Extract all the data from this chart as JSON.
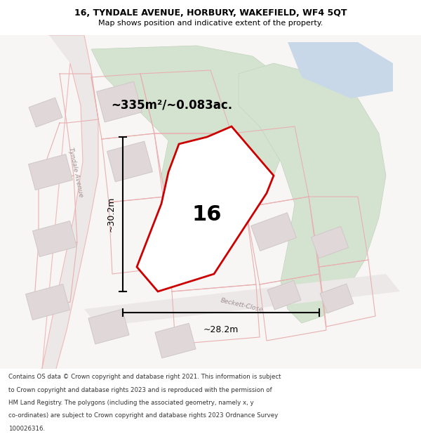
{
  "title_line1": "16, TYNDALE AVENUE, HORBURY, WAKEFIELD, WF4 5QT",
  "title_line2": "Map shows position and indicative extent of the property.",
  "area_label": "~335m²/~0.083ac.",
  "plot_number": "16",
  "dim_vertical": "~30.2m",
  "dim_horizontal": "~28.2m",
  "property_color": "#cc0000",
  "fig_width": 6.0,
  "fig_height": 6.25,
  "footer_lines": [
    "Contains OS data © Crown copyright and database right 2021. This information is subject",
    "to Crown copyright and database rights 2023 and is reproduced with the permission of",
    "HM Land Registry. The polygons (including the associated geometry, namely x, y",
    "co-ordinates) are subject to Crown copyright and database rights 2023 Ordnance Survey",
    "100026316."
  ]
}
